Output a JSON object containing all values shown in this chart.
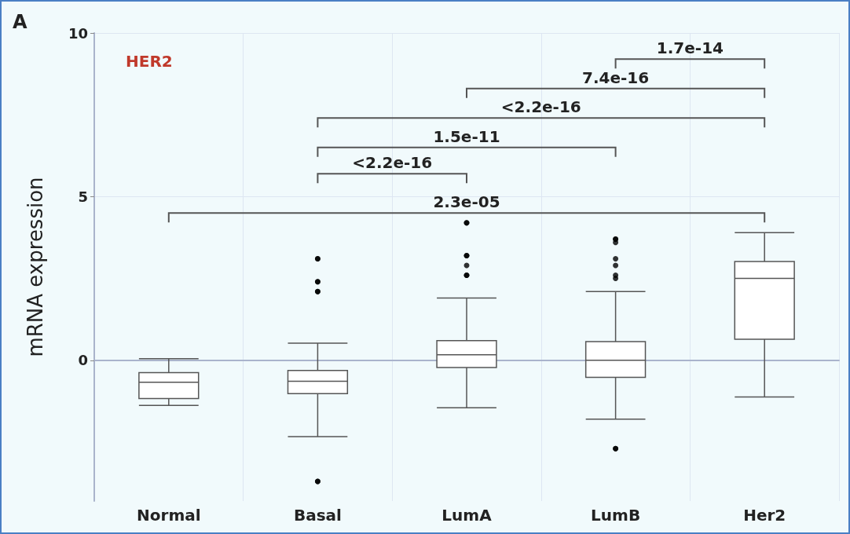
{
  "chart_data": {
    "type": "box",
    "ylabel": "mRNA expression",
    "categories": [
      "Normal",
      "Basal",
      "LumA",
      "LumB",
      "Her2"
    ],
    "boxes": [
      {
        "low": -1.38,
        "q1": -1.17,
        "median": -0.67,
        "q3": -0.38,
        "high": 0.05
      },
      {
        "low": -2.33,
        "q1": -1.02,
        "median": -0.64,
        "q3": -0.31,
        "high": 0.52,
        "outliers": [
          3.1,
          3.1,
          2.4,
          2.4,
          2.1,
          2.1,
          -3.7,
          -3.7
        ]
      },
      {
        "low": -1.45,
        "q1": -0.22,
        "median": 0.17,
        "q3": 0.6,
        "high": 1.9,
        "outliers": [
          4.2,
          4.2,
          3.2,
          3.2,
          2.9,
          2.6,
          2.6
        ]
      },
      {
        "low": -1.8,
        "q1": -0.52,
        "median": 0,
        "q3": 0.57,
        "high": 2.1,
        "outliers": [
          3.7,
          3.7,
          3.6,
          3.1,
          2.9,
          2.6,
          2.5,
          -2.7,
          -2.7
        ]
      },
      {
        "low": -1.12,
        "q1": 0.64,
        "median": 2.5,
        "q3": 3.02,
        "high": 3.9
      }
    ],
    "color": "#555555",
    "marker": "circle",
    "ylim": [
      -4.3,
      10
    ],
    "yticks": [
      0,
      5,
      10
    ],
    "grid": true,
    "annotations": [
      "A",
      "HER2",
      "2.3e-05",
      "<2.2e-16",
      "1.5e-11",
      "<2.2e-16",
      "7.4e-16",
      "1.7e-14"
    ]
  }
}
